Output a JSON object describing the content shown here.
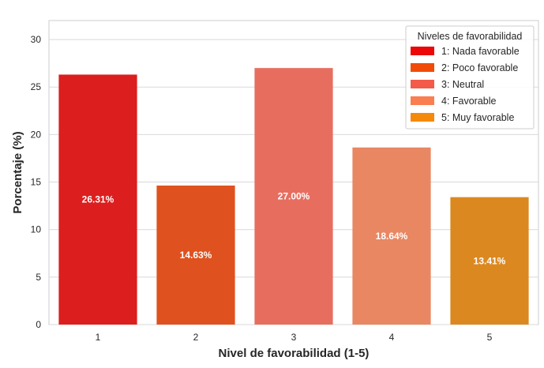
{
  "chart_data": {
    "type": "bar",
    "title": "",
    "xlabel": "Nivel de favorabilidad (1-5)",
    "ylabel": "Porcentaje (%)",
    "categories": [
      "1",
      "2",
      "3",
      "4",
      "5"
    ],
    "values": [
      26.31,
      14.63,
      27.0,
      18.64,
      13.41
    ],
    "value_labels": [
      "26.31%",
      "14.63%",
      "27.00%",
      "18.64%",
      "13.41%"
    ],
    "colors": [
      "#dc1e1e",
      "#df521f",
      "#e76e5f",
      "#e98762",
      "#dc8820"
    ],
    "ylim": [
      0,
      32
    ],
    "yticks": [
      0,
      5,
      10,
      15,
      20,
      25,
      30
    ],
    "grid": "horizontal",
    "legend": {
      "title": "Niveles de favorabilidad",
      "placement": "top-right",
      "entries": [
        {
          "label": "1: Nada favorable",
          "color": "#ec0808"
        },
        {
          "label": "2: Poco favorable",
          "color": "#f14b0a"
        },
        {
          "label": "3: Neutral",
          "color": "#f35a4a"
        },
        {
          "label": "4: Favorable",
          "color": "#fa7e50"
        },
        {
          "label": "5: Muy favorable",
          "color": "#f58a0a"
        }
      ]
    }
  }
}
